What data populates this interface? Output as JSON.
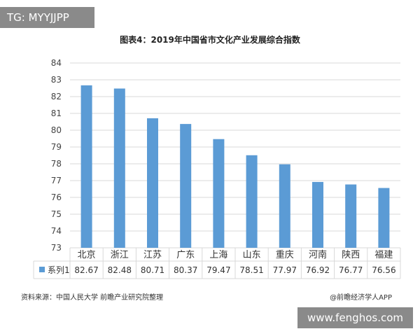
{
  "badge": {
    "text": "TG: MYYJJPP"
  },
  "source_text": "资料来源：中国人民大学 前瞻产业研究院整理",
  "credit_text": "@前瞻经济学人APP",
  "site_badge": {
    "text": "www.fenghos.com"
  },
  "colors": {
    "bar": "#5b9bd5",
    "grid": "#d9d9d9",
    "axis_text": "#444444"
  },
  "chart_data": {
    "type": "bar",
    "title": "图表4：2019年中国省市文化产业发展综合指数",
    "categories": [
      "北京",
      "浙江",
      "江苏",
      "广东",
      "上海",
      "山东",
      "重庆",
      "河南",
      "陕西",
      "福建"
    ],
    "series": [
      {
        "name": "系列1",
        "values": [
          82.67,
          82.48,
          80.71,
          80.37,
          79.47,
          78.51,
          77.97,
          76.92,
          76.77,
          76.56
        ]
      }
    ],
    "value_labels": [
      "82.67",
      "82.48",
      "80.71",
      "80.37",
      "79.47",
      "78.51",
      "77.97",
      "76.92",
      "76.77",
      "76.56"
    ],
    "ylim": [
      73,
      84
    ],
    "yticks": [
      "73",
      "74",
      "75",
      "76",
      "77",
      "78",
      "79",
      "80",
      "81",
      "82",
      "83",
      "84"
    ],
    "grid": true,
    "legend": "data-table"
  }
}
